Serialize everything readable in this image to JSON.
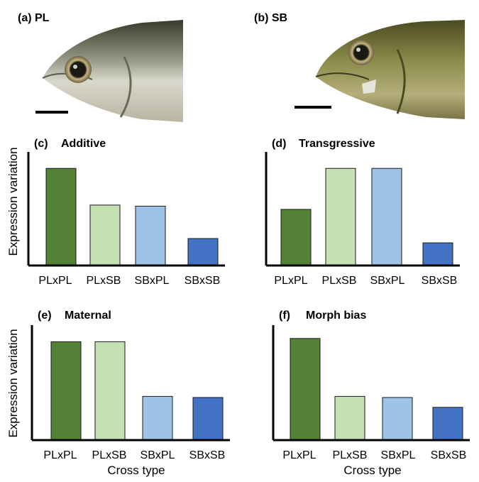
{
  "photos": [
    {
      "label": "(a) PL",
      "morph": "PL"
    },
    {
      "label": "(b) SB",
      "morph": "SB"
    }
  ],
  "colors": {
    "PLxPL": "#538135",
    "PLxSB": "#c5e0b3",
    "SBxPL": "#9dc3e6",
    "SBxSB": "#4472c4"
  },
  "y_axis_label": "Expression variation",
  "x_axis_label": "Cross type",
  "chart_data": [
    {
      "type": "bar",
      "panel": "(c)",
      "title": "Additive",
      "categories": [
        "PLxPL",
        "PLxSB",
        "SBxPL",
        "SBxSB"
      ],
      "values": [
        0.9,
        0.56,
        0.55,
        0.25
      ],
      "ylim": [
        0,
        1
      ]
    },
    {
      "type": "bar",
      "panel": "(d)",
      "title": "Transgressive",
      "categories": [
        "PLxPL",
        "PLxSB",
        "SBxPL",
        "SBxSB"
      ],
      "values": [
        0.52,
        0.9,
        0.9,
        0.21
      ],
      "ylim": [
        0,
        1
      ]
    },
    {
      "type": "bar",
      "panel": "(e)",
      "title": "Maternal",
      "categories": [
        "PLxPL",
        "PLxSB",
        "SBxPL",
        "SBxSB"
      ],
      "values": [
        0.9,
        0.9,
        0.4,
        0.39
      ],
      "ylim": [
        0,
        1
      ]
    },
    {
      "type": "bar",
      "panel": "(f)",
      "title": "Morph bias",
      "categories": [
        "PLxPL",
        "PLxSB",
        "SBxPL",
        "SBxSB"
      ],
      "values": [
        0.93,
        0.4,
        0.39,
        0.3
      ],
      "ylim": [
        0,
        1
      ]
    }
  ]
}
